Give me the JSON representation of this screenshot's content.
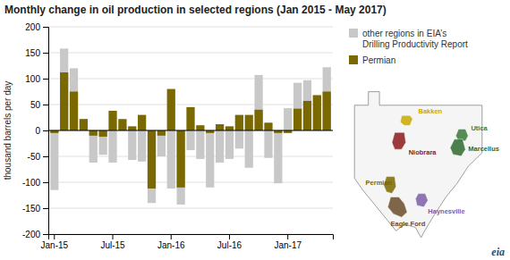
{
  "chart_data": {
    "type": "bar",
    "title": "Monthly change in oil production in selected regions (Jan 2015 - May 2017)",
    "ylabel": "thousand barrels per day",
    "categories": [
      "Jan-15",
      null,
      null,
      null,
      null,
      null,
      "Jul-15",
      null,
      null,
      null,
      null,
      null,
      "Jan-16",
      null,
      null,
      null,
      null,
      null,
      "Jul-16",
      null,
      null,
      null,
      null,
      null,
      "Jan-17",
      null,
      null,
      null,
      null
    ],
    "series": [
      {
        "name": "other regions in EIA’s\nDrilling Productivity Report",
        "color": "#c8c8c8",
        "values": [
          -115,
          158,
          120,
          22,
          -62,
          -47,
          -62,
          10,
          -57,
          -60,
          -140,
          -50,
          -112,
          -143,
          -38,
          -55,
          -110,
          -62,
          -55,
          -35,
          -72,
          107,
          -53,
          -102,
          43,
          92,
          97,
          68,
          122
        ]
      },
      {
        "name": "Permian",
        "color": "#7a6800",
        "values": [
          -5,
          112,
          75,
          22,
          -10,
          -12,
          38,
          22,
          8,
          30,
          -112,
          -10,
          80,
          -110,
          45,
          10,
          -5,
          12,
          8,
          30,
          30,
          40,
          15,
          -5,
          -5,
          42,
          57,
          68,
          75
        ]
      }
    ],
    "stacked": false,
    "ylim": [
      -200,
      200
    ],
    "yticks": [
      -200,
      -150,
      -100,
      -50,
      0,
      50,
      100,
      150,
      200
    ],
    "grid": true,
    "legend": "right",
    "annotations": [
      {
        "text": "Bakken",
        "color": "#c8a800"
      },
      {
        "text": "Niobrara",
        "color": "#8b1a1a"
      },
      {
        "text": "Utica",
        "color": "#3a7a3a"
      },
      {
        "text": "Marcellus",
        "color": "#2d6a2d"
      },
      {
        "text": "Permian",
        "color": "#7a6800"
      },
      {
        "text": "Eagle Ford",
        "color": "#6b4c2a"
      },
      {
        "text": "Haynesville",
        "color": "#7b5ea7"
      },
      {
        "text": "eia",
        "color": "#1a5276"
      }
    ]
  }
}
